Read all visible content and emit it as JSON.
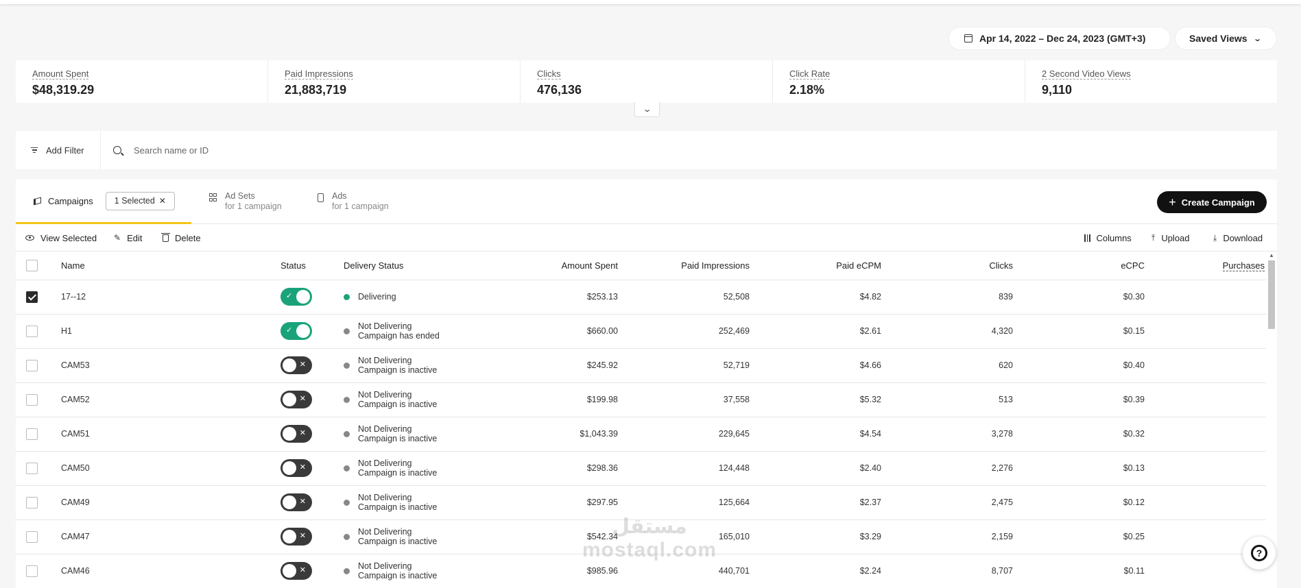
{
  "header": {
    "date_range": "Apr 14, 2022 – Dec 24, 2023 (GMT+3)",
    "saved_views_label": "Saved Views"
  },
  "metrics": [
    {
      "label": "Amount Spent",
      "value": "$48,319.29"
    },
    {
      "label": "Paid Impressions",
      "value": "21,883,719"
    },
    {
      "label": "Clicks",
      "value": "476,136"
    },
    {
      "label": "Click Rate",
      "value": "2.18%"
    },
    {
      "label": "2 Second Video Views",
      "value": "9,110"
    }
  ],
  "filter": {
    "add_filter_label": "Add Filter",
    "search_placeholder": "Search name or ID"
  },
  "tabs": {
    "campaigns_label": "Campaigns",
    "selected_label": "1 Selected",
    "ad_sets_label": "Ad Sets",
    "ad_sets_sub": "for 1 campaign",
    "ads_label": "Ads",
    "ads_sub": "for 1 campaign",
    "create_label": "Create Campaign"
  },
  "toolbar": {
    "view_selected": "View Selected",
    "edit": "Edit",
    "delete": "Delete",
    "columns": "Columns",
    "upload": "Upload",
    "download": "Download"
  },
  "table": {
    "headers": {
      "name": "Name",
      "status": "Status",
      "delivery_status": "Delivery Status",
      "amount_spent": "Amount Spent",
      "paid_impressions": "Paid Impressions",
      "paid_ecpm": "Paid eCPM",
      "clicks": "Clicks",
      "ecpc": "eCPC",
      "purchases": "Purchases"
    },
    "rows": [
      {
        "checked": true,
        "name": "17--12",
        "on": true,
        "ds1": "Delivering",
        "ds2": "",
        "amount": "$253.13",
        "impr": "52,508",
        "ecpm": "$4.82",
        "clicks": "839",
        "ecpc": "$0.30"
      },
      {
        "checked": false,
        "name": "H1",
        "on": true,
        "ds1": "Not Delivering",
        "ds2": "Campaign has ended",
        "amount": "$660.00",
        "impr": "252,469",
        "ecpm": "$2.61",
        "clicks": "4,320",
        "ecpc": "$0.15"
      },
      {
        "checked": false,
        "name": "CAM53",
        "on": false,
        "ds1": "Not Delivering",
        "ds2": "Campaign is inactive",
        "amount": "$245.92",
        "impr": "52,719",
        "ecpm": "$4.66",
        "clicks": "620",
        "ecpc": "$0.40"
      },
      {
        "checked": false,
        "name": "CAM52",
        "on": false,
        "ds1": "Not Delivering",
        "ds2": "Campaign is inactive",
        "amount": "$199.98",
        "impr": "37,558",
        "ecpm": "$5.32",
        "clicks": "513",
        "ecpc": "$0.39"
      },
      {
        "checked": false,
        "name": "CAM51",
        "on": false,
        "ds1": "Not Delivering",
        "ds2": "Campaign is inactive",
        "amount": "$1,043.39",
        "impr": "229,645",
        "ecpm": "$4.54",
        "clicks": "3,278",
        "ecpc": "$0.32"
      },
      {
        "checked": false,
        "name": "CAM50",
        "on": false,
        "ds1": "Not Delivering",
        "ds2": "Campaign is inactive",
        "amount": "$298.36",
        "impr": "124,448",
        "ecpm": "$2.40",
        "clicks": "2,276",
        "ecpc": "$0.13"
      },
      {
        "checked": false,
        "name": "CAM49",
        "on": false,
        "ds1": "Not Delivering",
        "ds2": "Campaign is inactive",
        "amount": "$297.95",
        "impr": "125,664",
        "ecpm": "$2.37",
        "clicks": "2,475",
        "ecpc": "$0.12"
      },
      {
        "checked": false,
        "name": "CAM47",
        "on": false,
        "ds1": "Not Delivering",
        "ds2": "Campaign is inactive",
        "amount": "$542.34",
        "impr": "165,010",
        "ecpm": "$3.29",
        "clicks": "2,159",
        "ecpc": "$0.25"
      },
      {
        "checked": false,
        "name": "CAM46",
        "on": false,
        "ds1": "Not Delivering",
        "ds2": "Campaign is inactive",
        "amount": "$985.96",
        "impr": "440,701",
        "ecpm": "$2.24",
        "clicks": "8,707",
        "ecpc": "$0.11"
      }
    ]
  },
  "watermark": {
    "line1": "مستقل",
    "line2": "mostaql.com"
  },
  "colors": {
    "accent_yellow": "#f2c618",
    "toggle_on": "#1aa37a",
    "primary_button": "#111111"
  },
  "icons": [
    "calendar-icon",
    "chevron-down-icon",
    "filter-icon",
    "search-icon",
    "megaphone-icon",
    "close-icon",
    "grid-icon",
    "phone-icon",
    "plus-icon",
    "eye-icon",
    "pencil-icon",
    "trash-icon",
    "columns-icon",
    "upload-icon",
    "download-icon",
    "help-icon"
  ]
}
